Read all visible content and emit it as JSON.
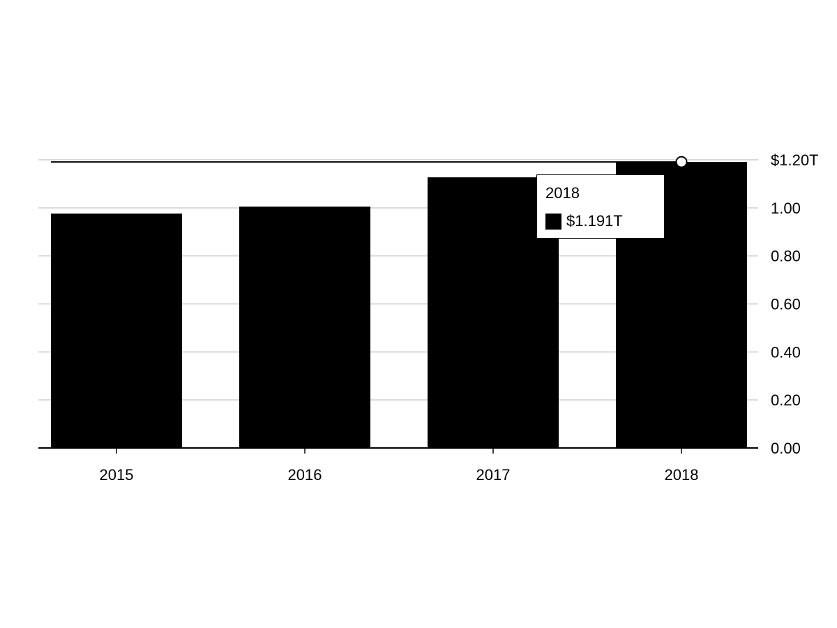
{
  "chart_data": {
    "type": "bar",
    "categories": [
      "2015",
      "2016",
      "2017",
      "2018"
    ],
    "series": [
      {
        "values": [
          0.976,
          1.005,
          1.127,
          1.191
        ],
        "color": "#000000"
      }
    ],
    "ylim": [
      0,
      1.2
    ],
    "yticks": [
      {
        "value": 0.0,
        "label": "0.00"
      },
      {
        "value": 0.2,
        "label": "0.20"
      },
      {
        "value": 0.4,
        "label": "0.40"
      },
      {
        "value": 0.6,
        "label": "0.60"
      },
      {
        "value": 0.8,
        "label": "0.80"
      },
      {
        "value": 1.0,
        "label": "1.00"
      },
      {
        "value": 1.2,
        "label": "$1.20T"
      }
    ],
    "y_axis_position": "right",
    "grid": true,
    "grid_color": "#d9d9d9",
    "tooltip": {
      "title": "2018",
      "value_label": "$1.191T",
      "highlighted_category": "2018"
    }
  }
}
